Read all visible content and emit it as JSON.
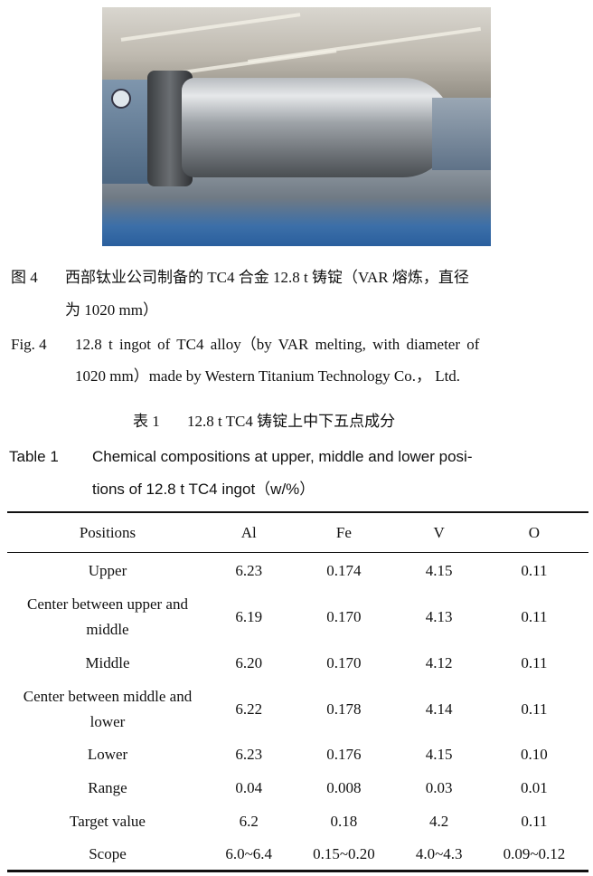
{
  "figure": {
    "label_cn": "图 4",
    "caption_cn_line1": "西部钛业公司制备的 TC4 合金 12.8 t 铸锭（VAR 熔炼，直径",
    "caption_cn_line2": "为 1020 mm）",
    "label_en": "Fig. 4",
    "caption_en_line1": "12.8 t ingot of TC4 alloy（by VAR melting, with diameter of",
    "caption_en_line2": "1020 mm）made by Western Titanium Technology Co.， Ltd."
  },
  "table": {
    "label_cn": "表 1",
    "title_cn": "12.8 t TC4 铸锭上中下五点成分",
    "label_en": "Table 1",
    "title_en_line1": "Chemical compositions at upper, middle and lower posi-",
    "title_en_line2": "tions of 12.8 t TC4 ingot（w/%）",
    "headers": [
      "Positions",
      "Al",
      "Fe",
      "V",
      "O"
    ],
    "rows": [
      [
        "Upper",
        "6.23",
        "0.174",
        "4.15",
        "0.11"
      ],
      [
        "Center between upper and middle",
        "6.19",
        "0.170",
        "4.13",
        "0.11"
      ],
      [
        "Middle",
        "6.20",
        "0.170",
        "4.12",
        "0.11"
      ],
      [
        "Center between middle and lower",
        "6.22",
        "0.178",
        "4.14",
        "0.11"
      ],
      [
        "Lower",
        "6.23",
        "0.176",
        "4.15",
        "0.10"
      ],
      [
        "Range",
        "0.04",
        "0.008",
        "0.03",
        "0.01"
      ],
      [
        "Target value",
        "6.2",
        "0.18",
        "4.2",
        "0.11"
      ],
      [
        "Scope",
        "6.0~6.4",
        "0.15~0.20",
        "4.0~4.3",
        "0.09~0.12"
      ]
    ]
  }
}
